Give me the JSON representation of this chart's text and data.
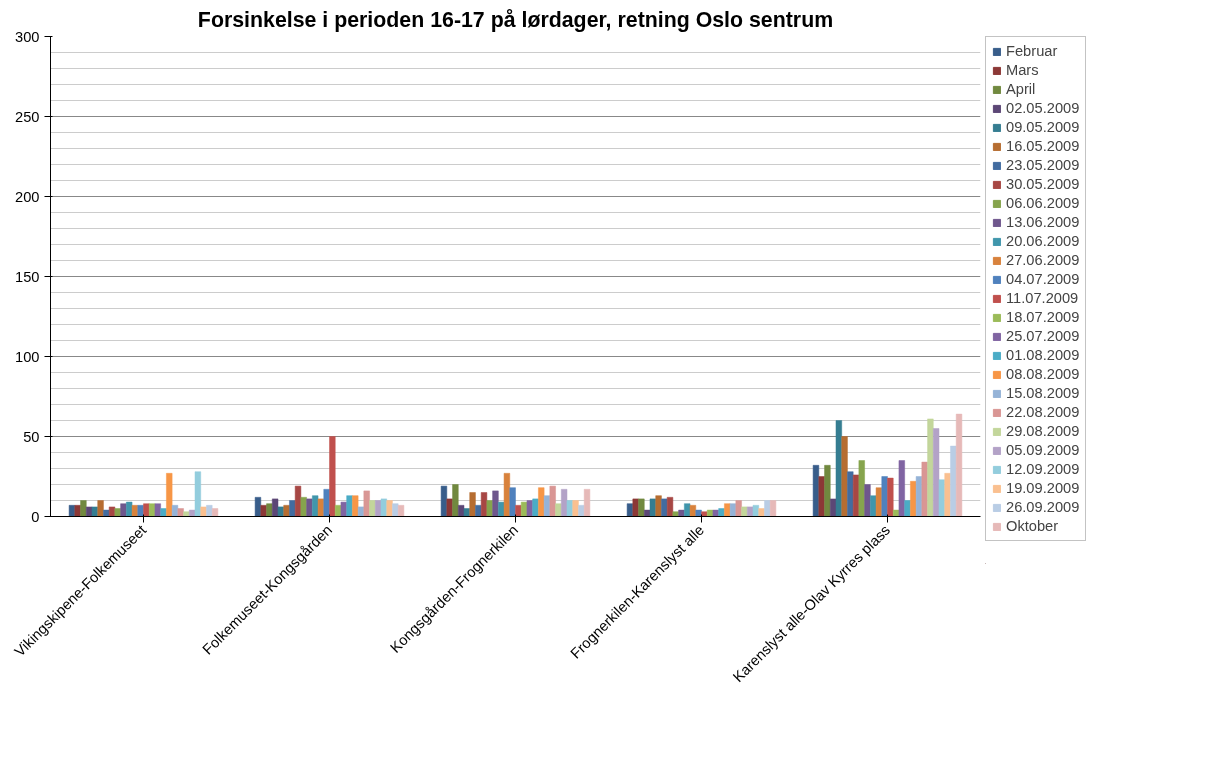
{
  "chart_data": {
    "type": "bar",
    "title": "Forsinkelse i perioden 16-17 på lørdager, retning Oslo sentrum",
    "categories": [
      "Vikingskipene-Folkemuseet",
      "Folkemuseet-Kongsgården",
      "Kongsgården-Frognerkilen",
      "Frognerkilen-Karenslyst alle",
      "Karenslyst alle-Olav Kyrres plass"
    ],
    "ylim": [
      0,
      300
    ],
    "yticks": [
      0,
      50,
      100,
      150,
      200,
      250,
      300
    ],
    "grid": "y",
    "legend": "right",
    "series": [
      {
        "name": "Februar",
        "color": "#385d8a",
        "values": [
          7,
          12,
          19,
          8,
          32
        ]
      },
      {
        "name": "Mars",
        "color": "#8c3836",
        "values": [
          7,
          7,
          11,
          11,
          25
        ]
      },
      {
        "name": "April",
        "color": "#71893f",
        "values": [
          10,
          8,
          20,
          11,
          32
        ]
      },
      {
        "name": "02.05.2009",
        "color": "#5c4776",
        "values": [
          6,
          11,
          7,
          4,
          11
        ]
      },
      {
        "name": "09.05.2009",
        "color": "#357d91",
        "values": [
          6,
          6,
          5,
          11,
          60
        ]
      },
      {
        "name": "16.05.2009",
        "color": "#b66d31",
        "values": [
          10,
          7,
          15,
          13,
          50
        ]
      },
      {
        "name": "23.05.2009",
        "color": "#426ca0",
        "values": [
          4,
          10,
          7,
          11,
          28
        ]
      },
      {
        "name": "30.05.2009",
        "color": "#a74744",
        "values": [
          6,
          19,
          15,
          12,
          26
        ]
      },
      {
        "name": "06.06.2009",
        "color": "#86a44d",
        "values": [
          5,
          12,
          10,
          3,
          35
        ]
      },
      {
        "name": "13.06.2009",
        "color": "#6f578d",
        "values": [
          8,
          11,
          16,
          4,
          20
        ]
      },
      {
        "name": "20.06.2009",
        "color": "#4096ac",
        "values": [
          9,
          13,
          9,
          8,
          13
        ]
      },
      {
        "name": "27.06.2009",
        "color": "#d8823c",
        "values": [
          7,
          11,
          27,
          7,
          18
        ]
      },
      {
        "name": "04.07.2009",
        "color": "#4f81bd",
        "values": [
          7,
          17,
          18,
          4,
          25
        ]
      },
      {
        "name": "11.07.2009",
        "color": "#c0504d",
        "values": [
          8,
          50,
          7,
          3,
          24
        ]
      },
      {
        "name": "18.07.2009",
        "color": "#9bbb59",
        "values": [
          8,
          7,
          9,
          4,
          4
        ]
      },
      {
        "name": "25.07.2009",
        "color": "#8064a2",
        "values": [
          8,
          9,
          10,
          4,
          35
        ]
      },
      {
        "name": "01.08.2009",
        "color": "#4bacc6",
        "values": [
          5,
          13,
          11,
          5,
          10
        ]
      },
      {
        "name": "08.08.2009",
        "color": "#f79646",
        "values": [
          27,
          13,
          18,
          8,
          22
        ]
      },
      {
        "name": "15.08.2009",
        "color": "#95b3d7",
        "values": [
          7,
          6,
          13,
          8,
          25
        ]
      },
      {
        "name": "22.08.2009",
        "color": "#d99694",
        "values": [
          5,
          16,
          19,
          10,
          34
        ]
      },
      {
        "name": "29.08.2009",
        "color": "#c3d69b",
        "values": [
          3,
          10,
          8,
          6,
          61
        ]
      },
      {
        "name": "05.09.2009",
        "color": "#b3a2c7",
        "values": [
          4,
          10,
          17,
          6,
          55
        ]
      },
      {
        "name": "12.09.2009",
        "color": "#93cddd",
        "values": [
          28,
          11,
          10,
          7,
          23
        ]
      },
      {
        "name": "19.09.2009",
        "color": "#fac090",
        "values": [
          6,
          10,
          10,
          5,
          27
        ]
      },
      {
        "name": "26.09.2009",
        "color": "#b9cde5",
        "values": [
          7,
          8,
          7,
          10,
          44
        ]
      },
      {
        "name": "Oktober",
        "color": "#e6b9b8",
        "values": [
          5,
          7,
          17,
          10,
          64
        ]
      }
    ]
  }
}
